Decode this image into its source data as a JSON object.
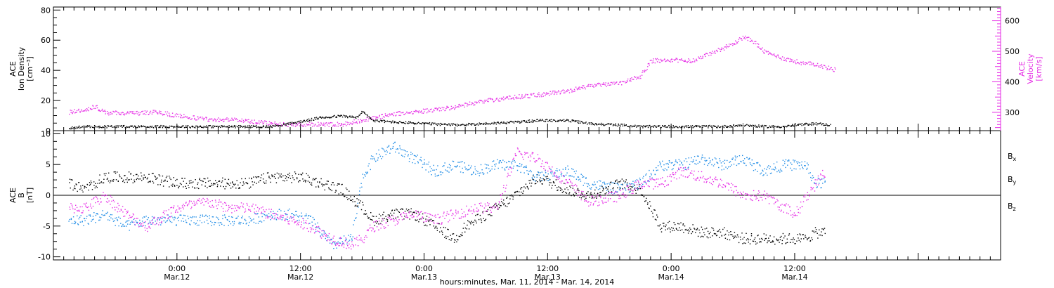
{
  "chart_data": [
    {
      "type": "scatter",
      "panel": "top",
      "left_axis": {
        "title_lines": [
          "ACE",
          "Ion Density",
          "[cm⁻³]"
        ],
        "ylim": [
          0,
          82
        ],
        "ticks": [
          0,
          20,
          40,
          60,
          80
        ],
        "color": "#000000"
      },
      "right_axis": {
        "title_lines": [
          "ACE",
          "Velocity",
          "[km/s]"
        ],
        "ylim": [
          240,
          645
        ],
        "ticks": [
          300,
          400,
          500,
          600
        ],
        "color": "#e62ee6"
      },
      "series": [
        {
          "axis": "left",
          "color": "#000000",
          "points": [
            [
              -21,
              2
            ],
            [
              -18,
              3
            ],
            [
              -12,
              3
            ],
            [
              -6,
              3
            ],
            [
              0,
              3
            ],
            [
              6,
              3
            ],
            [
              10,
              3
            ],
            [
              14,
              3
            ],
            [
              18,
              3
            ],
            [
              22,
              5
            ],
            [
              28,
              9
            ],
            [
              32,
              10
            ],
            [
              35,
              9
            ],
            [
              36,
              13
            ],
            [
              38,
              7
            ],
            [
              42,
              6
            ],
            [
              48,
              5
            ],
            [
              54,
              4
            ],
            [
              60,
              5
            ],
            [
              66,
              6
            ],
            [
              70,
              7
            ],
            [
              76,
              7
            ],
            [
              80,
              5
            ],
            [
              86,
              4
            ],
            [
              90,
              3
            ],
            [
              94,
              3
            ],
            [
              98,
              3
            ],
            [
              102,
              3
            ],
            [
              106,
              3
            ],
            [
              110,
              4
            ],
            [
              114,
              3
            ],
            [
              118,
              3
            ],
            [
              120,
              4
            ],
            [
              124,
              5
            ],
            [
              127,
              4
            ]
          ]
        },
        {
          "axis": "right",
          "color": "#e62ee6",
          "points": [
            [
              -21,
              302
            ],
            [
              -18,
              308
            ],
            [
              -16,
              320
            ],
            [
              -14,
              300
            ],
            [
              -8,
              298
            ],
            [
              -4,
              302
            ],
            [
              0,
              290
            ],
            [
              6,
              278
            ],
            [
              10,
              278
            ],
            [
              14,
              272
            ],
            [
              20,
              262
            ],
            [
              26,
              262
            ],
            [
              32,
              262
            ],
            [
              36,
              276
            ],
            [
              42,
              296
            ],
            [
              48,
              306
            ],
            [
              54,
              318
            ],
            [
              60,
              340
            ],
            [
              66,
              352
            ],
            [
              70,
              358
            ],
            [
              76,
              372
            ],
            [
              80,
              388
            ],
            [
              86,
              396
            ],
            [
              90,
              420
            ],
            [
              92,
              470
            ],
            [
              96,
              472
            ],
            [
              100,
              470
            ],
            [
              104,
              498
            ],
            [
              108,
              525
            ],
            [
              110,
              548
            ],
            [
              112,
              533
            ],
            [
              114,
              500
            ],
            [
              118,
              477
            ],
            [
              122,
              460
            ],
            [
              124,
              460
            ],
            [
              126,
              448
            ],
            [
              128,
              440
            ]
          ]
        }
      ]
    },
    {
      "type": "scatter",
      "panel": "bottom",
      "left_axis": {
        "title_lines": [
          "ACE",
          "B",
          "[nT]"
        ],
        "ylim": [
          -10.5,
          10.5
        ],
        "ticks": [
          -10,
          -5,
          0,
          5,
          10
        ]
      },
      "zero_line": true,
      "series": [
        {
          "name": "Bx",
          "color": "#000000",
          "points": [
            [
              -21,
              2
            ],
            [
              -18,
              1
            ],
            [
              -14,
              3
            ],
            [
              -10,
              3
            ],
            [
              -6,
              3
            ],
            [
              0,
              2
            ],
            [
              6,
              2
            ],
            [
              10,
              2
            ],
            [
              14,
              2
            ],
            [
              18,
              3
            ],
            [
              24,
              3
            ],
            [
              28,
              2
            ],
            [
              32,
              1
            ],
            [
              36,
              -2
            ],
            [
              38,
              -4
            ],
            [
              42,
              -3
            ],
            [
              46,
              -3
            ],
            [
              50,
              -5
            ],
            [
              54,
              -7
            ],
            [
              56,
              -5
            ],
            [
              60,
              -3
            ],
            [
              64,
              -1
            ],
            [
              70,
              3
            ],
            [
              76,
              1
            ],
            [
              80,
              0
            ],
            [
              86,
              2
            ],
            [
              90,
              1
            ],
            [
              94,
              -5
            ],
            [
              98,
              -5
            ],
            [
              102,
              -6
            ],
            [
              106,
              -6
            ],
            [
              110,
              -7
            ],
            [
              114,
              -7
            ],
            [
              118,
              -7
            ],
            [
              122,
              -7
            ],
            [
              124,
              -6
            ],
            [
              126,
              -6
            ]
          ]
        },
        {
          "name": "By",
          "color": "#1e8ce6",
          "points": [
            [
              -21,
              -4
            ],
            [
              -18,
              -4
            ],
            [
              -14,
              -3
            ],
            [
              -10,
              -5
            ],
            [
              -6,
              -4
            ],
            [
              0,
              -4
            ],
            [
              6,
              -4
            ],
            [
              10,
              -4
            ],
            [
              14,
              -4
            ],
            [
              18,
              -3
            ],
            [
              22,
              -3
            ],
            [
              26,
              -4
            ],
            [
              30,
              -8
            ],
            [
              34,
              -7
            ],
            [
              36,
              3
            ],
            [
              38,
              6
            ],
            [
              42,
              8
            ],
            [
              46,
              6
            ],
            [
              50,
              4
            ],
            [
              54,
              5
            ],
            [
              58,
              4
            ],
            [
              62,
              5
            ],
            [
              66,
              5
            ],
            [
              70,
              3
            ],
            [
              76,
              4
            ],
            [
              80,
              2
            ],
            [
              86,
              1
            ],
            [
              90,
              2
            ],
            [
              94,
              5
            ],
            [
              98,
              5
            ],
            [
              102,
              6
            ],
            [
              106,
              5
            ],
            [
              110,
              6
            ],
            [
              114,
              4
            ],
            [
              118,
              5
            ],
            [
              122,
              5
            ],
            [
              124,
              2
            ],
            [
              126,
              2
            ]
          ]
        },
        {
          "name": "Bz",
          "color": "#e62ee6",
          "points": [
            [
              -21,
              -2
            ],
            [
              -18,
              -2
            ],
            [
              -14,
              0
            ],
            [
              -10,
              -3
            ],
            [
              -6,
              -5
            ],
            [
              -2,
              -3
            ],
            [
              0,
              -2
            ],
            [
              6,
              -1
            ],
            [
              10,
              -2
            ],
            [
              14,
              -2
            ],
            [
              18,
              -3
            ],
            [
              22,
              -4
            ],
            [
              26,
              -5
            ],
            [
              30,
              -7
            ],
            [
              34,
              -8
            ],
            [
              36,
              -7
            ],
            [
              38,
              -5
            ],
            [
              42,
              -4
            ],
            [
              46,
              -3
            ],
            [
              50,
              -4
            ],
            [
              54,
              -3
            ],
            [
              58,
              -2
            ],
            [
              62,
              -2
            ],
            [
              66,
              7
            ],
            [
              70,
              6
            ],
            [
              76,
              2
            ],
            [
              80,
              -1
            ],
            [
              86,
              0
            ],
            [
              90,
              2
            ],
            [
              94,
              2
            ],
            [
              98,
              4
            ],
            [
              102,
              3
            ],
            [
              106,
              2
            ],
            [
              110,
              0
            ],
            [
              114,
              0
            ],
            [
              118,
              -2
            ],
            [
              120,
              -3
            ],
            [
              124,
              2
            ],
            [
              126,
              4
            ]
          ]
        }
      ],
      "legend": [
        {
          "label": "B",
          "sub": "x",
          "color": "#000000"
        },
        {
          "label": "B",
          "sub": "y",
          "color": "#1e8ce6"
        },
        {
          "label": "B",
          "sub": "z",
          "color": "#e62ee6"
        }
      ]
    }
  ],
  "x_axis": {
    "range_hours": [
      -24,
      160
    ],
    "ticks": [
      {
        "hour": 0,
        "time": "0:00",
        "date": "Mar.12"
      },
      {
        "hour": 24,
        "time": "12:00",
        "date": "Mar.12"
      },
      {
        "hour": 48,
        "time": "0:00",
        "date": "Mar.13"
      },
      {
        "hour": 72,
        "time": "12:00",
        "date": "Mar.13"
      },
      {
        "hour": 96,
        "time": "0:00",
        "date": "Mar.14"
      },
      {
        "hour": 120,
        "time": "12:00",
        "date": "Mar.14"
      }
    ],
    "title": "hours:minutes, Mar. 11, 2014 - Mar. 14, 2014"
  }
}
